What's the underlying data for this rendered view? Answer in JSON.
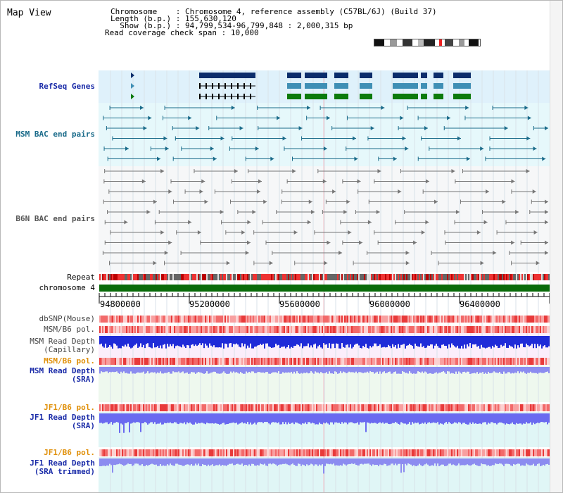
{
  "title": "Map View",
  "info": {
    "chromosome_label": "Chromosome",
    "chromosome_value": "Chromosome 4, reference assembly (C57BL/6J) (Build 37)",
    "length_label": "Length (b.p.)",
    "length_value": "155,630,120",
    "show_label": "Show (b.p.)",
    "show_value": "94,799,534-96,799,848 : 2,000,315 bp",
    "coverage_label": "Read coverage check span",
    "coverage_value": "10,000"
  },
  "tracks": {
    "refseq": "RefSeq Genes",
    "msm_bac": "MSM BAC end pairs",
    "b6n_bac": "B6N BAC end pairs",
    "repeat": "Repeat",
    "chromosome": "chromosome 4",
    "dbsnp": "dbSNP(Mouse)",
    "msm_b6_pol_1": "MSM/B6 pol.",
    "msm_read_depth_cap_1": "MSM Read Depth",
    "msm_read_depth_cap_2": "(Capillary)",
    "msm_b6_pol_2": "MSM/B6 pol.",
    "msm_read_depth_sra_1": "MSM Read Depth",
    "msm_read_depth_sra_2": "(SRA)",
    "jf1_b6_pol_1": "JF1/B6 pol.",
    "jf1_read_depth_sra_1": "JF1 Read Depth",
    "jf1_read_depth_sra_2": "(SRA)",
    "jf1_b6_pol_2": "JF1/B6 pol.",
    "jf1_read_depth_trim_1": "JF1 Read Depth",
    "jf1_read_depth_trim_2": "(SRA trimmed)"
  },
  "axis": {
    "ticks": [
      "94800000",
      "95200000",
      "95600000",
      "96000000",
      "96400000"
    ]
  },
  "colors": {
    "refseq_band": "#dff1fb",
    "msm_band": "#e6f8fb",
    "b6n_band": "#f4f6f8",
    "pol_light": "#f8b4b4",
    "pol_dark": "#e83a3a",
    "depth_cap": "#1f2bd8",
    "depth_sra": "#8c8cf0",
    "gene_dark": "#0b2d6b",
    "gene_mid": "#3f8fb5",
    "gene_green": "#0c7a0c",
    "chrom_green": "#0a6b0a"
  }
}
